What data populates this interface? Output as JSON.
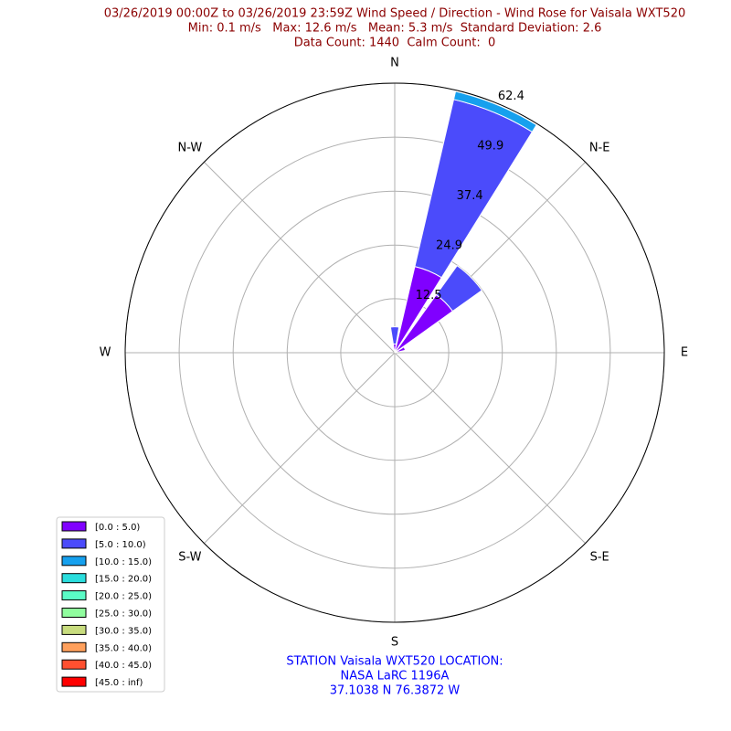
{
  "chart_data": {
    "type": "windrose",
    "title": [
      "03/26/2019 00:00Z to 03/26/2019 23:59Z Wind Speed / Direction - Wind Rose for Vaisala WXT520",
      "Min: 0.1 m/s   Max: 12.6 m/s   Mean: 5.3 m/s  Standard Deviation: 2.6",
      "Data Count: 1440  Calm Count:  0"
    ],
    "footer": [
      "STATION Vaisala WXT520 LOCATION:",
      "NASA LaRC 1196A",
      "37.1038 N 76.3872 W"
    ],
    "direction_labels": [
      "N",
      "N-E",
      "E",
      "S-E",
      "S",
      "S-W",
      "W",
      "N-W"
    ],
    "x": [
      0,
      22.5,
      45,
      67.5,
      90,
      112.5,
      135,
      157.5,
      180,
      202.5,
      225,
      247.5,
      270,
      292.5,
      315,
      337.5
    ],
    "rlim": [
      0,
      62.4
    ],
    "rticks": [
      12.5,
      24.9,
      37.4,
      49.9,
      62.4
    ],
    "grid": true,
    "legend": "lower left",
    "series": [
      {
        "name": "[0.0 : 5.0)",
        "color": "#8000ff",
        "values": [
          2.0,
          20.5,
          16.5,
          2.5,
          0,
          0,
          0,
          0,
          0,
          0,
          0,
          0,
          0,
          0,
          0,
          0
        ]
      },
      {
        "name": "[5.0 : 10.0)",
        "color": "#4b4bfb",
        "values": [
          4.0,
          39.7,
          8.3,
          0,
          0,
          0,
          0,
          0,
          0,
          0,
          0,
          0,
          0,
          0,
          0,
          0
        ]
      },
      {
        "name": "[10.0 : 15.0)",
        "color": "#16a0ee",
        "values": [
          0,
          1.9,
          0,
          0,
          0,
          0,
          0,
          0,
          0,
          0,
          0,
          0,
          0,
          0,
          0,
          0
        ]
      },
      {
        "name": "[15.0 : 20.0)",
        "color": "#2adddd",
        "values": [
          0,
          0,
          0,
          0,
          0,
          0,
          0,
          0,
          0,
          0,
          0,
          0,
          0,
          0,
          0,
          0
        ]
      },
      {
        "name": "[20.0 : 25.0)",
        "color": "#5afcc6",
        "values": [
          0,
          0,
          0,
          0,
          0,
          0,
          0,
          0,
          0,
          0,
          0,
          0,
          0,
          0,
          0,
          0
        ]
      },
      {
        "name": "[25.0 : 30.0)",
        "color": "#90fc9e",
        "values": [
          0,
          0,
          0,
          0,
          0,
          0,
          0,
          0,
          0,
          0,
          0,
          0,
          0,
          0,
          0,
          0
        ]
      },
      {
        "name": "[30.0 : 35.0)",
        "color": "#c8dc7e",
        "values": [
          0,
          0,
          0,
          0,
          0,
          0,
          0,
          0,
          0,
          0,
          0,
          0,
          0,
          0,
          0,
          0
        ]
      },
      {
        "name": "[35.0 : 40.0)",
        "color": "#ffa05c",
        "values": [
          0,
          0,
          0,
          0,
          0,
          0,
          0,
          0,
          0,
          0,
          0,
          0,
          0,
          0,
          0,
          0
        ]
      },
      {
        "name": "[40.0 : 45.0)",
        "color": "#ff5030",
        "values": [
          0,
          0,
          0,
          0,
          0,
          0,
          0,
          0,
          0,
          0,
          0,
          0,
          0,
          0,
          0,
          0
        ]
      },
      {
        "name": "[45.0 : inf)",
        "color": "#ff0000",
        "values": [
          0,
          0,
          0,
          0,
          0,
          0,
          0,
          0,
          0,
          0,
          0,
          0,
          0,
          0,
          0,
          0
        ]
      }
    ]
  }
}
